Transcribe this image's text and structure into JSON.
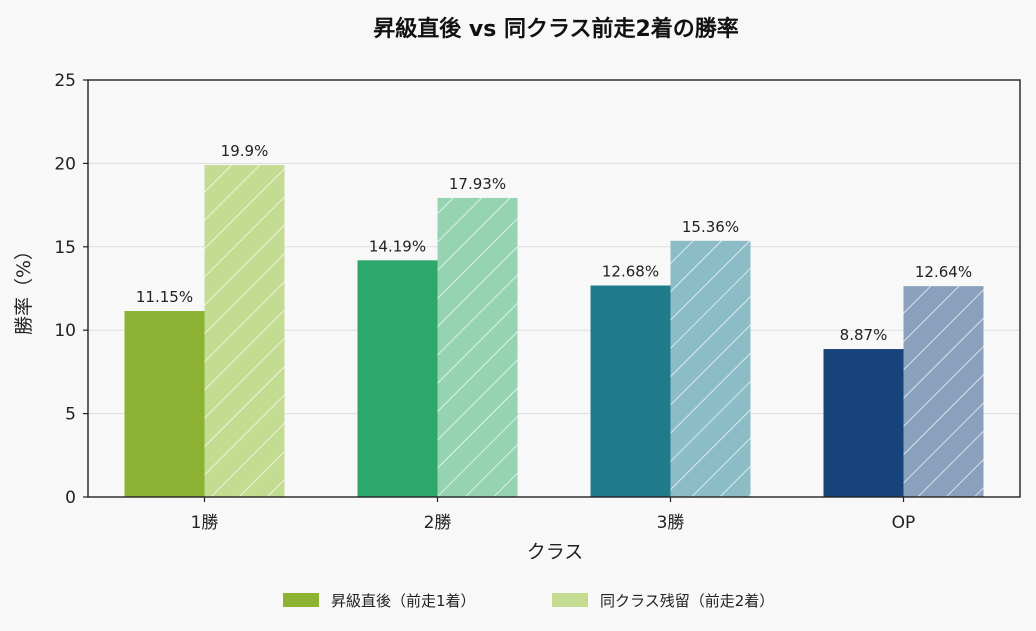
{
  "chart_data": {
    "type": "bar",
    "title": "昇級直後 vs 同クラス前走2着の勝率",
    "xlabel": "クラス",
    "ylabel": "勝率（%）",
    "categories": [
      "1勝",
      "2勝",
      "3勝",
      "OP"
    ],
    "ylim": [
      0,
      25
    ],
    "yticks": [
      0,
      5,
      10,
      15,
      20,
      25
    ],
    "grid": true,
    "legend_position": "bottom",
    "series": [
      {
        "name": "昇級直後（前走1着）",
        "values": [
          11.15,
          14.19,
          12.68,
          8.87
        ],
        "labels": [
          "11.15%",
          "14.19%",
          "12.68%",
          "8.87%"
        ],
        "colors": [
          "#8bb232",
          "#2ea86a",
          "#1f7a8c",
          "#15437a"
        ],
        "hatch": false
      },
      {
        "name": "同クラス残留（前走2着）",
        "values": [
          19.9,
          17.93,
          15.36,
          12.64
        ],
        "labels": [
          "19.9%",
          "17.93%",
          "15.36%",
          "12.64%"
        ],
        "colors": [
          "#c3dc92",
          "#95d3b1",
          "#8cbcc6",
          "#8aa1bd"
        ],
        "hatch": true
      }
    ]
  }
}
